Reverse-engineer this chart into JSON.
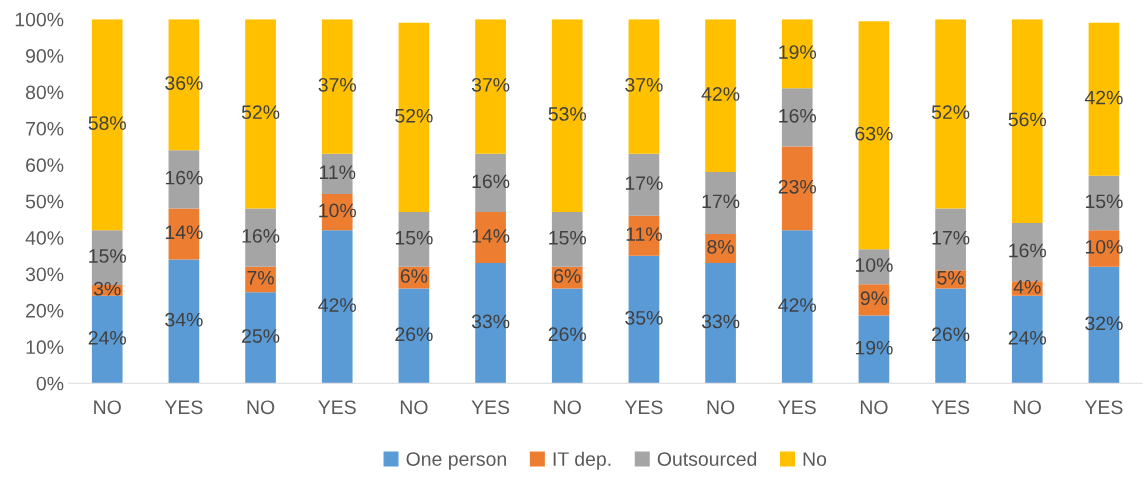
{
  "chart_data": {
    "type": "bar",
    "stacked": true,
    "categories": [
      "NO",
      "YES",
      "NO",
      "YES",
      "NO",
      "YES",
      "NO",
      "YES",
      "NO",
      "YES",
      "NO",
      "YES",
      "NO",
      "YES"
    ],
    "series": [
      {
        "name": "One person",
        "color": "#5b9bd5",
        "values": [
          24,
          34,
          25,
          42,
          26,
          33,
          26,
          35,
          33,
          42,
          18.6,
          26,
          24,
          32
        ],
        "value_labels": [
          "24%",
          "34%",
          "25%",
          "42%",
          "26%",
          "33%",
          "26%",
          "35%",
          "33%",
          "42%",
          "19%",
          "26%",
          "24%",
          "32%"
        ]
      },
      {
        "name": "IT dep.",
        "color": "#ed7d31",
        "values": [
          3,
          14,
          7,
          10,
          6,
          14,
          6,
          11,
          8,
          23,
          8.6,
          5,
          4,
          10
        ],
        "value_labels": [
          "3%",
          "14%",
          "7%",
          "10%",
          "6%",
          "14%",
          "6%",
          "11%",
          "8%",
          "23%",
          "9%",
          "5%",
          "4%",
          "10%"
        ]
      },
      {
        "name": "Outsourced",
        "color": "#a5a5a5",
        "values": [
          15,
          16,
          16,
          11,
          15,
          16,
          15,
          17,
          17,
          16,
          9.6,
          17,
          16,
          15
        ],
        "value_labels": [
          "15%",
          "16%",
          "16%",
          "11%",
          "15%",
          "16%",
          "15%",
          "17%",
          "17%",
          "16%",
          "10%",
          "17%",
          "16%",
          "15%"
        ]
      },
      {
        "name": "No",
        "color": "#ffc000",
        "values": [
          58,
          36,
          52,
          37,
          52,
          37,
          53,
          37,
          42,
          19,
          62.6,
          52,
          56,
          42
        ],
        "value_labels": [
          "58%",
          "36%",
          "52%",
          "37%",
          "52%",
          "37%",
          "53%",
          "37%",
          "42%",
          "19%",
          "63%",
          "52%",
          "56%",
          "42%"
        ]
      }
    ],
    "ylim": [
      0,
      100
    ],
    "yticks": [
      {
        "value": 0,
        "label": "0%"
      },
      {
        "value": 10,
        "label": "10%"
      },
      {
        "value": 20,
        "label": "20%"
      },
      {
        "value": 30,
        "label": "30%"
      },
      {
        "value": 40,
        "label": "40%"
      },
      {
        "value": 50,
        "label": "50%"
      },
      {
        "value": 60,
        "label": "60%"
      },
      {
        "value": 70,
        "label": "70%"
      },
      {
        "value": 80,
        "label": "80%"
      },
      {
        "value": 90,
        "label": "90%"
      },
      {
        "value": 100,
        "label": "100%"
      }
    ],
    "legend": "bottom"
  }
}
